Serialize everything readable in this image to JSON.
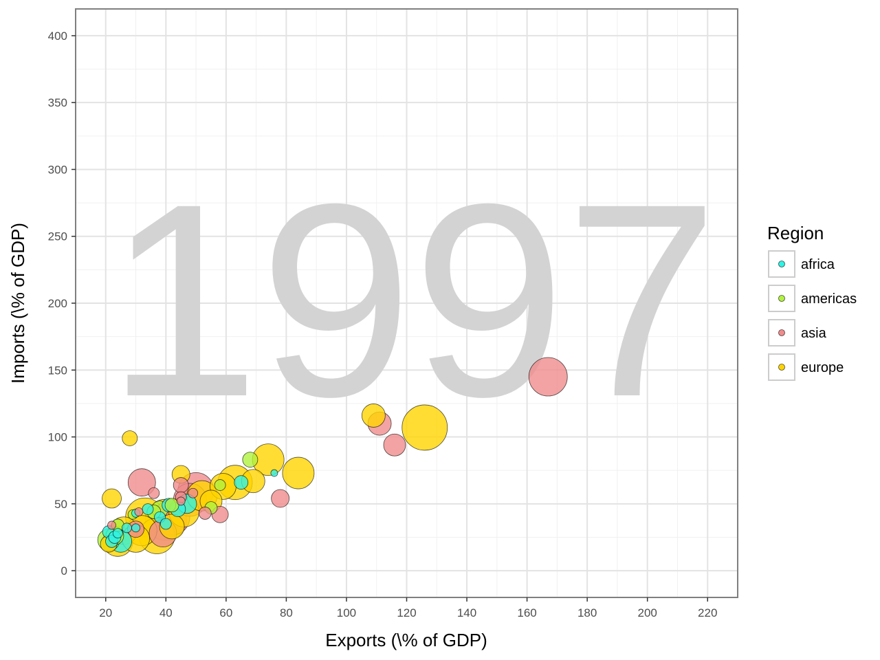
{
  "chart_data": {
    "type": "scatter",
    "title": "",
    "xlabel": "Exports (\\% of GDP)",
    "ylabel": "Imports (\\% of GDP)",
    "xlim": [
      10,
      230
    ],
    "ylim": [
      -20,
      420
    ],
    "x_ticks": [
      20,
      40,
      60,
      80,
      100,
      120,
      140,
      160,
      180,
      200,
      220
    ],
    "y_ticks": [
      0,
      50,
      100,
      150,
      200,
      250,
      300,
      350,
      400
    ],
    "grid": true,
    "year": "1997",
    "legend": {
      "title": "Region",
      "placement": "right",
      "entries": [
        {
          "label": "africa",
          "color": "#2ff2e3"
        },
        {
          "label": "americas",
          "color": "#b0f23f"
        },
        {
          "label": "asia",
          "color": "#f08c8c"
        },
        {
          "label": "europe",
          "color": "#ffd400"
        }
      ]
    },
    "series": [
      {
        "region": "africa",
        "color": "#2ff2e3",
        "points": [
          {
            "x": 21,
            "y": 29,
            "size": 9
          },
          {
            "x": 22,
            "y": 22,
            "size": 9
          },
          {
            "x": 23,
            "y": 25,
            "size": 9
          },
          {
            "x": 24,
            "y": 28,
            "size": 7
          },
          {
            "x": 25,
            "y": 22,
            "size": 16
          },
          {
            "x": 27,
            "y": 32,
            "size": 7
          },
          {
            "x": 30,
            "y": 32,
            "size": 6
          },
          {
            "x": 30,
            "y": 43,
            "size": 6
          },
          {
            "x": 34,
            "y": 46,
            "size": 8
          },
          {
            "x": 38,
            "y": 40,
            "size": 8
          },
          {
            "x": 40,
            "y": 35,
            "size": 8
          },
          {
            "x": 41,
            "y": 49,
            "size": 10
          },
          {
            "x": 44,
            "y": 46,
            "size": 11
          },
          {
            "x": 47,
            "y": 50,
            "size": 14
          },
          {
            "x": 65,
            "y": 66,
            "size": 10
          },
          {
            "x": 76,
            "y": 73,
            "size": 5
          }
        ]
      },
      {
        "region": "americas",
        "color": "#b0f23f",
        "points": [
          {
            "x": 21,
            "y": 23,
            "size": 16
          },
          {
            "x": 23,
            "y": 26,
            "size": 13
          },
          {
            "x": 24,
            "y": 34,
            "size": 9
          },
          {
            "x": 29,
            "y": 42,
            "size": 7
          },
          {
            "x": 36,
            "y": 44,
            "size": 10
          },
          {
            "x": 38,
            "y": 46,
            "size": 12
          },
          {
            "x": 42,
            "y": 49,
            "size": 10
          },
          {
            "x": 55,
            "y": 47,
            "size": 9
          },
          {
            "x": 58,
            "y": 64,
            "size": 8
          },
          {
            "x": 68,
            "y": 83,
            "size": 11
          }
        ]
      },
      {
        "region": "asia",
        "color": "#f08c8c",
        "points": [
          {
            "x": 22,
            "y": 34,
            "size": 6
          },
          {
            "x": 31,
            "y": 44,
            "size": 6
          },
          {
            "x": 30,
            "y": 31,
            "size": 12
          },
          {
            "x": 32,
            "y": 66,
            "size": 20
          },
          {
            "x": 36,
            "y": 58,
            "size": 8
          },
          {
            "x": 39,
            "y": 28,
            "size": 20
          },
          {
            "x": 42,
            "y": 40,
            "size": 26
          },
          {
            "x": 45,
            "y": 52,
            "size": 6
          },
          {
            "x": 45,
            "y": 55,
            "size": 8
          },
          {
            "x": 45,
            "y": 64,
            "size": 11
          },
          {
            "x": 48,
            "y": 53,
            "size": 24
          },
          {
            "x": 49,
            "y": 58,
            "size": 7
          },
          {
            "x": 50,
            "y": 60,
            "size": 26
          },
          {
            "x": 53,
            "y": 43,
            "size": 9
          },
          {
            "x": 58,
            "y": 42,
            "size": 12
          },
          {
            "x": 78,
            "y": 54,
            "size": 13
          },
          {
            "x": 111,
            "y": 110,
            "size": 17
          },
          {
            "x": 116,
            "y": 94,
            "size": 16
          },
          {
            "x": 167,
            "y": 145,
            "size": 28
          }
        ]
      },
      {
        "region": "europe",
        "color": "#ffd400",
        "points": [
          {
            "x": 21,
            "y": 20,
            "size": 12
          },
          {
            "x": 22,
            "y": 54,
            "size": 14
          },
          {
            "x": 24,
            "y": 22,
            "size": 22
          },
          {
            "x": 26,
            "y": 30,
            "size": 20
          },
          {
            "x": 28,
            "y": 99,
            "size": 11
          },
          {
            "x": 30,
            "y": 24,
            "size": 20
          },
          {
            "x": 32,
            "y": 30,
            "size": 22
          },
          {
            "x": 33,
            "y": 40,
            "size": 28
          },
          {
            "x": 37,
            "y": 26,
            "size": 26
          },
          {
            "x": 40,
            "y": 38,
            "size": 30
          },
          {
            "x": 42,
            "y": 33,
            "size": 18
          },
          {
            "x": 45,
            "y": 72,
            "size": 13
          },
          {
            "x": 46,
            "y": 44,
            "size": 22
          },
          {
            "x": 52,
            "y": 56,
            "size": 22
          },
          {
            "x": 55,
            "y": 52,
            "size": 16
          },
          {
            "x": 59,
            "y": 63,
            "size": 19
          },
          {
            "x": 63,
            "y": 66,
            "size": 25
          },
          {
            "x": 69,
            "y": 67,
            "size": 17
          },
          {
            "x": 74,
            "y": 83,
            "size": 23
          },
          {
            "x": 84,
            "y": 73,
            "size": 23
          },
          {
            "x": 109,
            "y": 116,
            "size": 17
          },
          {
            "x": 126,
            "y": 107,
            "size": 33
          }
        ]
      }
    ]
  }
}
